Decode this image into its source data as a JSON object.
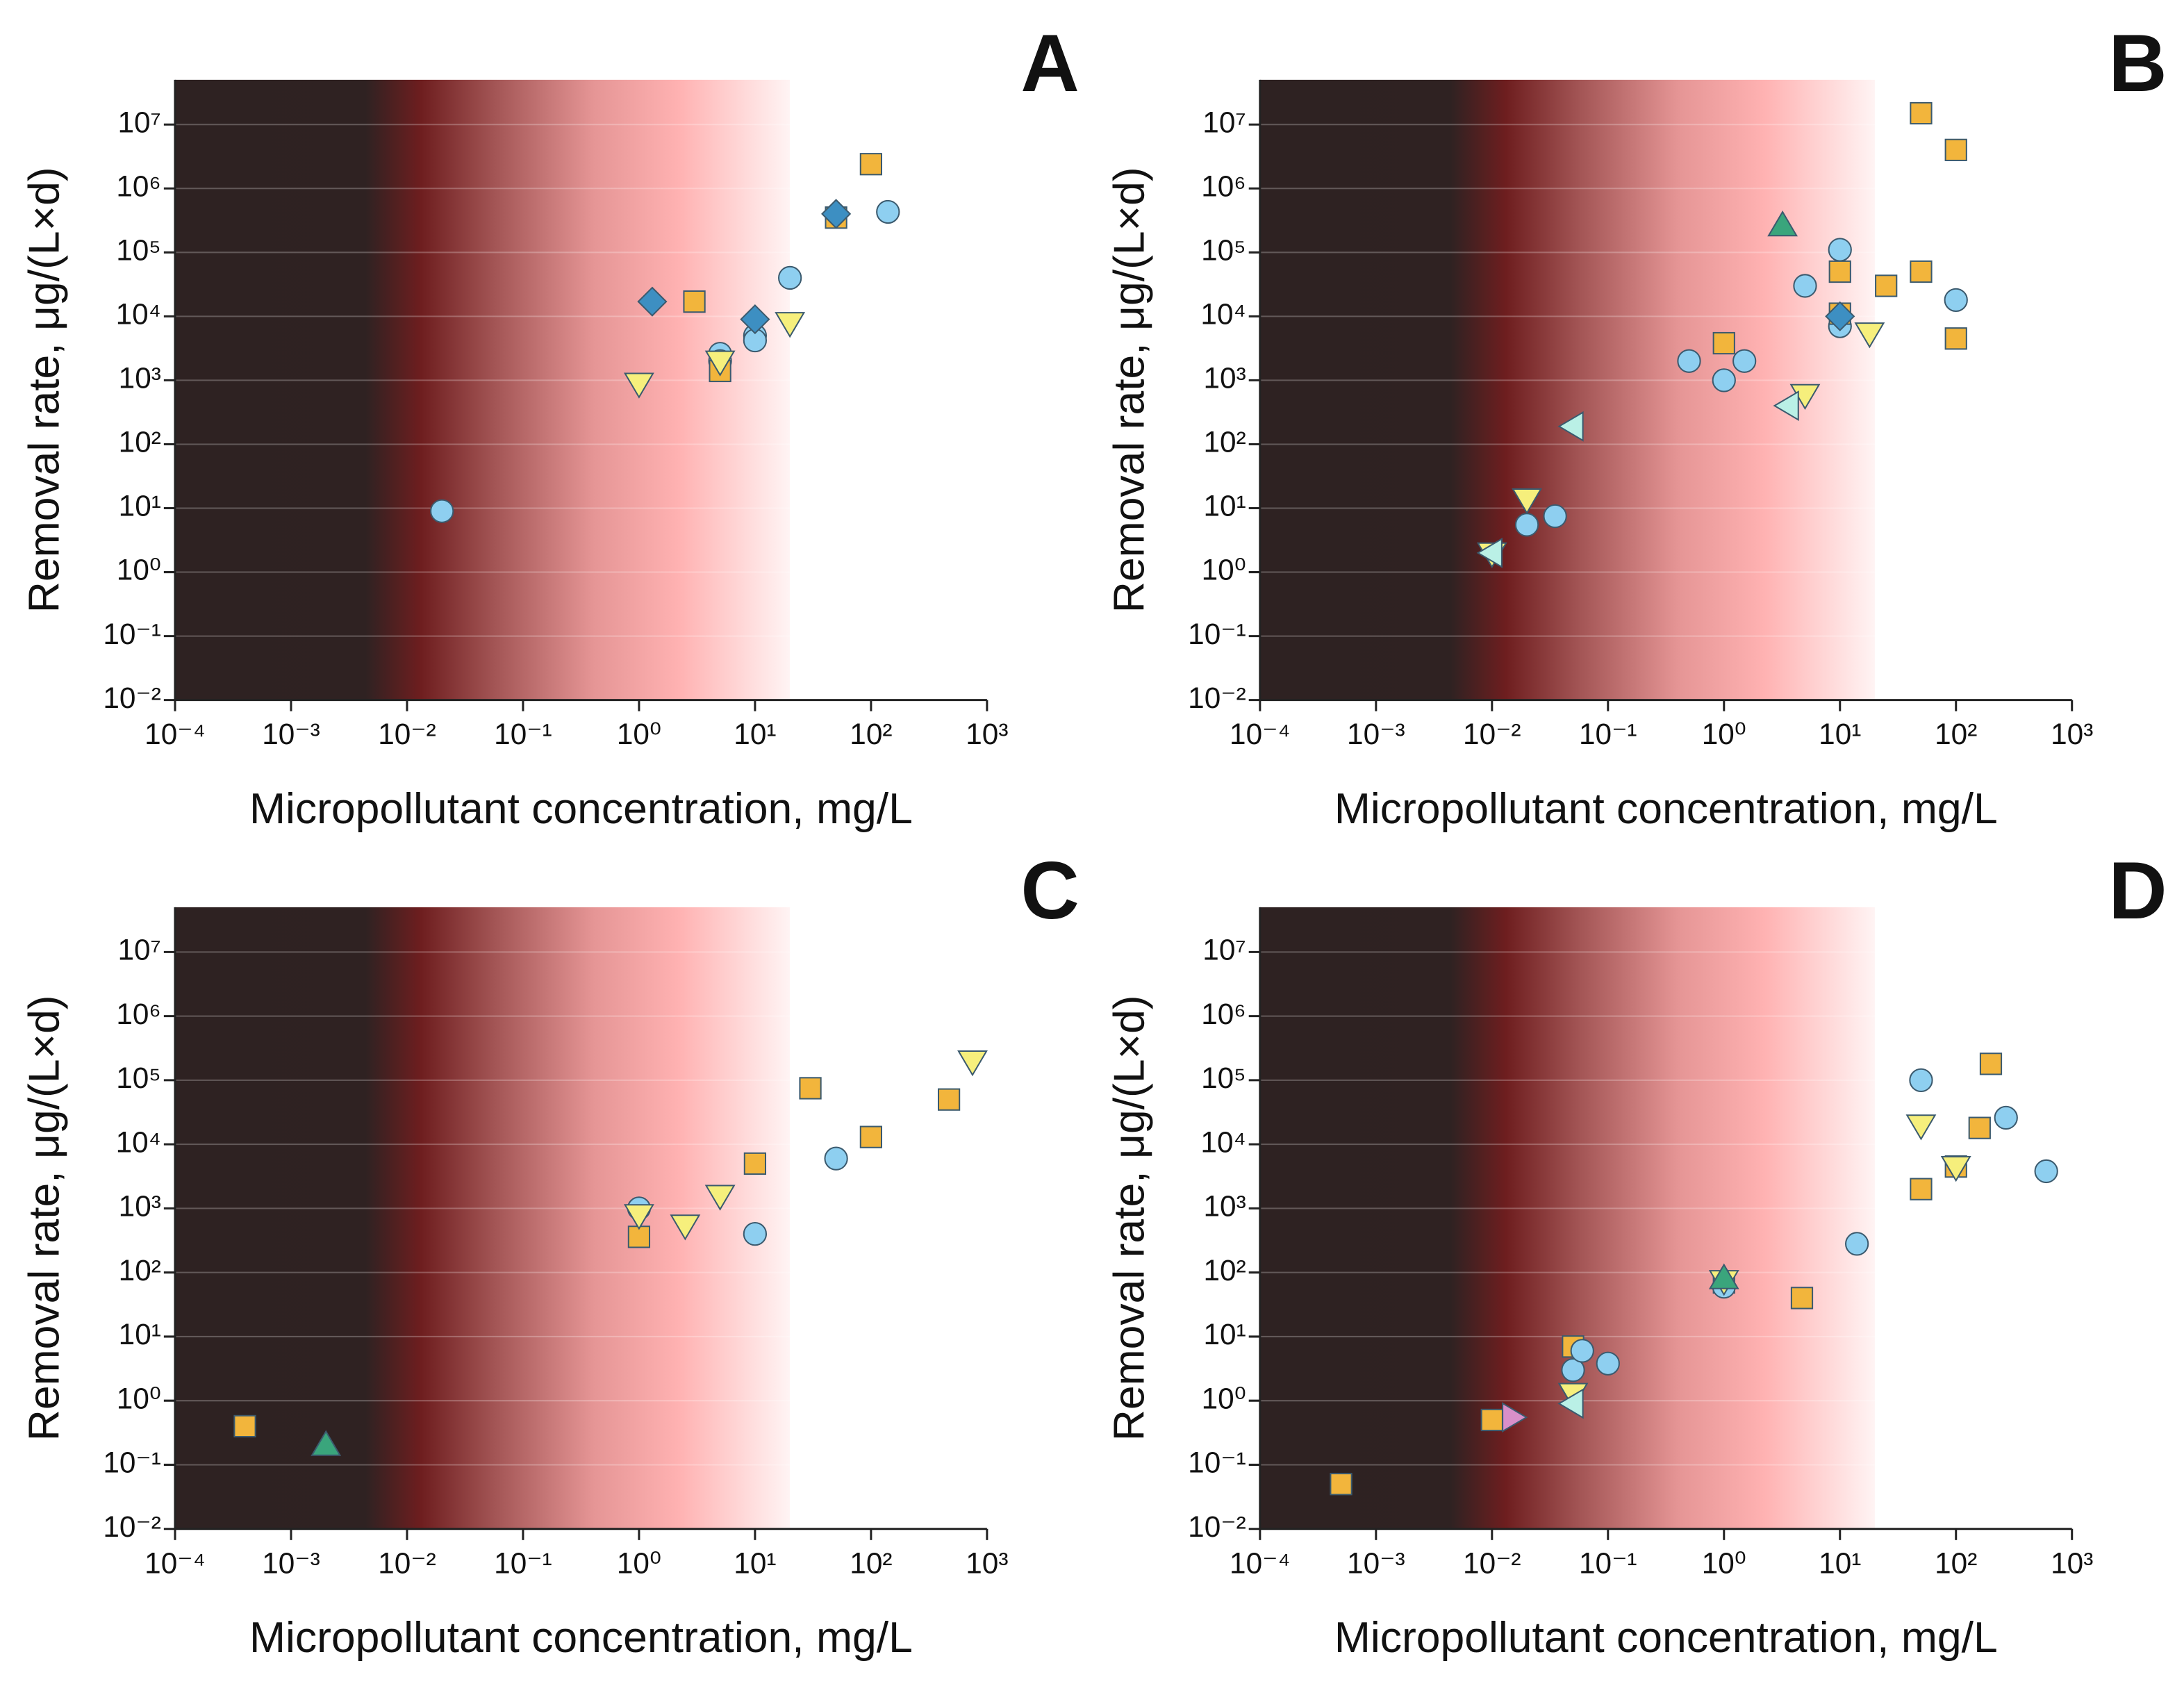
{
  "chart_data": [
    {
      "type": "scatter",
      "title": "A",
      "x_label": "Micropollutant concentration, mg/L",
      "y_label": "Removal rate, μg/(L×d)",
      "xscale": "log",
      "yscale": "log",
      "xlim": [
        0.0001,
        1000
      ],
      "ylim": [
        0.01,
        50000000
      ],
      "shaded_region": [
        0.0001,
        20
      ],
      "grid": true,
      "xticks": [
        {
          "value": 0.0001,
          "label": "10⁻⁴"
        },
        {
          "value": 0.001,
          "label": "10⁻³"
        },
        {
          "value": 0.01,
          "label": "10⁻²"
        },
        {
          "value": 0.1,
          "label": "10⁻¹"
        },
        {
          "value": 1,
          "label": "10⁰"
        },
        {
          "value": 10,
          "label": "10¹"
        },
        {
          "value": 100,
          "label": "10²"
        },
        {
          "value": 1000,
          "label": "10³"
        }
      ],
      "yticks": [
        {
          "value": 0.01,
          "label": "10⁻²"
        },
        {
          "value": 0.1,
          "label": "10⁻¹"
        },
        {
          "value": 1,
          "label": "10⁰"
        },
        {
          "value": 10,
          "label": "10¹"
        },
        {
          "value": 100,
          "label": "10²"
        },
        {
          "value": 1000,
          "label": "10³"
        },
        {
          "value": 10000,
          "label": "10⁴"
        },
        {
          "value": 100000,
          "label": "10⁵"
        },
        {
          "value": 1000000,
          "label": "10⁶"
        },
        {
          "value": 10000000,
          "label": "10⁷"
        }
      ],
      "series": [
        {
          "marker": "circle",
          "color": "#8ecff0",
          "x": [
            0.02,
            5,
            5,
            10,
            10,
            20,
            140
          ],
          "values": [
            9,
            2600,
            2000,
            5000,
            4200,
            40000,
            430000
          ]
        },
        {
          "marker": "square",
          "color": "#f2b53c",
          "x": [
            3,
            5,
            50,
            100
          ],
          "values": [
            17000,
            1400,
            350000,
            2400000
          ]
        },
        {
          "marker": "triangle-down",
          "color": "#f6ef7c",
          "x": [
            1,
            5,
            20
          ],
          "values": [
            900,
            2000,
            8000
          ]
        },
        {
          "marker": "diamond",
          "color": "#3d8fc2",
          "x": [
            1.3,
            10,
            50
          ],
          "values": [
            17000,
            9000,
            400000
          ]
        }
      ]
    },
    {
      "type": "scatter",
      "title": "B",
      "x_label": "Micropollutant concentration, mg/L",
      "y_label": "Removal rate, μg/(L×d)",
      "xscale": "log",
      "yscale": "log",
      "xlim": [
        0.0001,
        1000
      ],
      "ylim": [
        0.01,
        50000000
      ],
      "shaded_region": [
        0.0001,
        20
      ],
      "grid": true,
      "xticks": [
        {
          "value": 0.0001,
          "label": "10⁻⁴"
        },
        {
          "value": 0.001,
          "label": "10⁻³"
        },
        {
          "value": 0.01,
          "label": "10⁻²"
        },
        {
          "value": 0.1,
          "label": "10⁻¹"
        },
        {
          "value": 1,
          "label": "10⁰"
        },
        {
          "value": 10,
          "label": "10¹"
        },
        {
          "value": 100,
          "label": "10²"
        },
        {
          "value": 1000,
          "label": "10³"
        }
      ],
      "yticks": [
        {
          "value": 0.01,
          "label": "10⁻²"
        },
        {
          "value": 0.1,
          "label": "10⁻¹"
        },
        {
          "value": 1,
          "label": "10⁰"
        },
        {
          "value": 10,
          "label": "10¹"
        },
        {
          "value": 100,
          "label": "10²"
        },
        {
          "value": 1000,
          "label": "10³"
        },
        {
          "value": 10000,
          "label": "10⁴"
        },
        {
          "value": 100000,
          "label": "10⁵"
        },
        {
          "value": 1000000,
          "label": "10⁶"
        },
        {
          "value": 10000000,
          "label": "10⁷"
        }
      ],
      "series": [
        {
          "marker": "circle",
          "color": "#8ecff0",
          "x": [
            0.02,
            0.035,
            0.5,
            1,
            1.5,
            5,
            10,
            10,
            100
          ],
          "values": [
            5.5,
            7.5,
            2000,
            1000,
            2000,
            30000,
            110000,
            7000,
            18000
          ]
        },
        {
          "marker": "square",
          "color": "#f2b53c",
          "x": [
            1,
            10,
            10,
            25,
            50,
            50,
            100,
            100
          ],
          "values": [
            3800,
            50000,
            11000,
            30000,
            50000,
            15000000,
            4000000,
            4500
          ]
        },
        {
          "marker": "triangle-down",
          "color": "#f6ef7c",
          "x": [
            0.02,
            0.01,
            5,
            18
          ],
          "values": [
            14,
            2,
            600,
            5500
          ]
        },
        {
          "marker": "triangle-up",
          "color": "#3aa57c",
          "x": [
            3.2
          ],
          "values": [
            260000
          ]
        },
        {
          "marker": "triangle-left",
          "color": "#baf0e6",
          "x": [
            0.01,
            0.05,
            3.6
          ],
          "values": [
            2,
            190,
            400
          ]
        },
        {
          "marker": "diamond",
          "color": "#3d8fc2",
          "x": [
            10
          ],
          "values": [
            10000
          ]
        }
      ]
    },
    {
      "type": "scatter",
      "title": "C",
      "x_label": "Micropollutant concentration, mg/L",
      "y_label": "Removal rate, μg/(L×d)",
      "xscale": "log",
      "yscale": "log",
      "xlim": [
        0.0001,
        1000
      ],
      "ylim": [
        0.01,
        50000000
      ],
      "shaded_region": [
        0.0001,
        20
      ],
      "grid": true,
      "xticks": [
        {
          "value": 0.0001,
          "label": "10⁻⁴"
        },
        {
          "value": 0.001,
          "label": "10⁻³"
        },
        {
          "value": 0.01,
          "label": "10⁻²"
        },
        {
          "value": 0.1,
          "label": "10⁻¹"
        },
        {
          "value": 1,
          "label": "10⁰"
        },
        {
          "value": 10,
          "label": "10¹"
        },
        {
          "value": 100,
          "label": "10²"
        },
        {
          "value": 1000,
          "label": "10³"
        }
      ],
      "yticks": [
        {
          "value": 0.01,
          "label": "10⁻²"
        },
        {
          "value": 0.1,
          "label": "10⁻¹"
        },
        {
          "value": 1,
          "label": "10⁰"
        },
        {
          "value": 10,
          "label": "10¹"
        },
        {
          "value": 100,
          "label": "10²"
        },
        {
          "value": 1000,
          "label": "10³"
        },
        {
          "value": 10000,
          "label": "10⁴"
        },
        {
          "value": 100000,
          "label": "10⁵"
        },
        {
          "value": 1000000,
          "label": "10⁶"
        },
        {
          "value": 10000000,
          "label": "10⁷"
        }
      ],
      "series": [
        {
          "marker": "square",
          "color": "#f2b53c",
          "x": [
            0.0004,
            1,
            10,
            30,
            100,
            470
          ],
          "values": [
            0.4,
            360,
            5000,
            75000,
            13000,
            50000
          ]
        },
        {
          "marker": "triangle-up",
          "color": "#3aa57c",
          "x": [
            0.002
          ],
          "values": [
            0.2
          ]
        },
        {
          "marker": "circle",
          "color": "#8ecff0",
          "x": [
            1,
            10,
            50
          ],
          "values": [
            1000,
            400,
            6000
          ]
        },
        {
          "marker": "triangle-down",
          "color": "#f6ef7c",
          "x": [
            1,
            2.5,
            5,
            750
          ],
          "values": [
            800,
            550,
            1600,
            200000
          ]
        }
      ]
    },
    {
      "type": "scatter",
      "title": "D",
      "x_label": "Micropollutant concentration, mg/L",
      "y_label": "Removal rate, μg/(L×d)",
      "xscale": "log",
      "yscale": "log",
      "xlim": [
        0.0001,
        1000
      ],
      "ylim": [
        0.01,
        50000000
      ],
      "shaded_region": [
        0.0001,
        20
      ],
      "grid": true,
      "xticks": [
        {
          "value": 0.0001,
          "label": "10⁻⁴"
        },
        {
          "value": 0.001,
          "label": "10⁻³"
        },
        {
          "value": 0.01,
          "label": "10⁻²"
        },
        {
          "value": 0.1,
          "label": "10⁻¹"
        },
        {
          "value": 1,
          "label": "10⁰"
        },
        {
          "value": 10,
          "label": "10¹"
        },
        {
          "value": 100,
          "label": "10²"
        },
        {
          "value": 1000,
          "label": "10³"
        }
      ],
      "yticks": [
        {
          "value": 0.01,
          "label": "10⁻²"
        },
        {
          "value": 0.1,
          "label": "10⁻¹"
        },
        {
          "value": 1,
          "label": "10⁰"
        },
        {
          "value": 10,
          "label": "10¹"
        },
        {
          "value": 100,
          "label": "10²"
        },
        {
          "value": 1000,
          "label": "10³"
        },
        {
          "value": 10000,
          "label": "10⁴"
        },
        {
          "value": 100000,
          "label": "10⁵"
        },
        {
          "value": 1000000,
          "label": "10⁶"
        },
        {
          "value": 10000000,
          "label": "10⁷"
        }
      ],
      "series": [
        {
          "marker": "square",
          "color": "#f2b53c",
          "x": [
            0.0005,
            0.01,
            0.05,
            1,
            4.7,
            50,
            100,
            160,
            200
          ],
          "values": [
            0.05,
            0.5,
            7,
            70,
            40,
            2000,
            4500,
            18000,
            180000
          ]
        },
        {
          "marker": "circle",
          "color": "#8ecff0",
          "x": [
            0.05,
            0.06,
            0.1,
            1,
            14,
            50,
            270,
            600
          ],
          "values": [
            3,
            6,
            3.8,
            60,
            280,
            100000,
            26000,
            3800
          ]
        },
        {
          "marker": "triangle-down",
          "color": "#f6ef7c",
          "x": [
            0.05,
            1,
            50,
            100
          ],
          "values": [
            1.3,
            75,
            20000,
            4500
          ]
        },
        {
          "marker": "triangle-left",
          "color": "#baf0e6",
          "x": [
            0.05
          ],
          "values": [
            0.9
          ]
        },
        {
          "marker": "triangle-up",
          "color": "#3aa57c",
          "x": [
            1
          ],
          "values": [
            80
          ]
        },
        {
          "marker": "triangle-right",
          "color": "#d98fc9",
          "x": [
            0.015
          ],
          "values": [
            0.55
          ]
        }
      ]
    }
  ]
}
